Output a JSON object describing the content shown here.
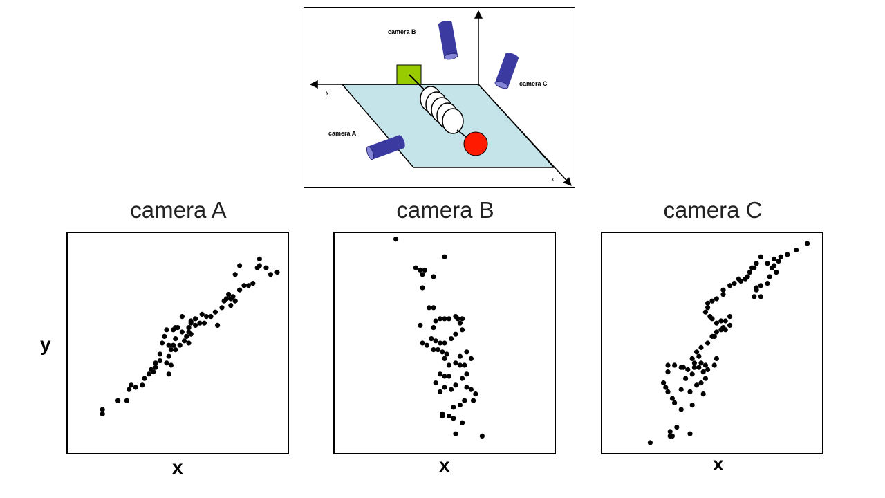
{
  "diagram": {
    "labels": {
      "camera_a": "camera A",
      "camera_b": "camera B",
      "camera_c": "camera C",
      "axis_x": "x",
      "axis_y": "y"
    },
    "colors": {
      "plane": "#c5e4ea",
      "camera": "#3a3aa0",
      "camera_cap": "#8585d8",
      "box": "#99cc00",
      "ball": "#ff1a00"
    }
  },
  "chart_data": [
    {
      "type": "scatter",
      "title": "camera A",
      "xlabel": "x",
      "ylabel": "y",
      "xlim": [
        0,
        100
      ],
      "ylim": [
        0,
        100
      ],
      "grid": false,
      "legend": "none",
      "points": [
        [
          16,
          20
        ],
        [
          16,
          18
        ],
        [
          23,
          24
        ],
        [
          27,
          24
        ],
        [
          28,
          29
        ],
        [
          29,
          31
        ],
        [
          31,
          30
        ],
        [
          34,
          31
        ],
        [
          35,
          34
        ],
        [
          37,
          36
        ],
        [
          39,
          37
        ],
        [
          40,
          39
        ],
        [
          40,
          41
        ],
        [
          38,
          38
        ],
        [
          42,
          42
        ],
        [
          45,
          41
        ],
        [
          46,
          36
        ],
        [
          47,
          40
        ],
        [
          46,
          44
        ],
        [
          42,
          45
        ],
        [
          48,
          49
        ],
        [
          49,
          47
        ],
        [
          51,
          49
        ],
        [
          53,
          51
        ],
        [
          54,
          53
        ],
        [
          55,
          50
        ],
        [
          56,
          54
        ],
        [
          52,
          55
        ],
        [
          50,
          57
        ],
        [
          49,
          57
        ],
        [
          48,
          56
        ],
        [
          44,
          53
        ],
        [
          46,
          49
        ],
        [
          43,
          50
        ],
        [
          45,
          56
        ],
        [
          49,
          52
        ],
        [
          55,
          55
        ],
        [
          58,
          58
        ],
        [
          60,
          59
        ],
        [
          62,
          59
        ],
        [
          63,
          62
        ],
        [
          67,
          64
        ],
        [
          65,
          62
        ],
        [
          68,
          58
        ],
        [
          70,
          66
        ],
        [
          71,
          69
        ],
        [
          72,
          70
        ],
        [
          73,
          72
        ],
        [
          74,
          70
        ],
        [
          74,
          67
        ],
        [
          75,
          71
        ],
        [
          76,
          69
        ],
        [
          78,
          74
        ],
        [
          80,
          76
        ],
        [
          82,
          76
        ],
        [
          84,
          77
        ],
        [
          86,
          84
        ],
        [
          87,
          85
        ],
        [
          90,
          84
        ],
        [
          92,
          81
        ],
        [
          95,
          82
        ],
        [
          87,
          88
        ],
        [
          76,
          81
        ],
        [
          78,
          85
        ],
        [
          61,
          63
        ],
        [
          56,
          60
        ],
        [
          58,
          61
        ],
        [
          52,
          62
        ],
        [
          56,
          59
        ],
        [
          55,
          57
        ],
        [
          47,
          47
        ]
      ]
    },
    {
      "type": "scatter",
      "title": "camera B",
      "xlabel": "x",
      "ylabel": "",
      "xlim": [
        0,
        100
      ],
      "ylim": [
        0,
        100
      ],
      "grid": false,
      "legend": "none",
      "points": [
        [
          28,
          97
        ],
        [
          50,
          89
        ],
        [
          37,
          84
        ],
        [
          39,
          83
        ],
        [
          40,
          81
        ],
        [
          41,
          83
        ],
        [
          45,
          80
        ],
        [
          40,
          75
        ],
        [
          43,
          66
        ],
        [
          45,
          66
        ],
        [
          39,
          58
        ],
        [
          45,
          57
        ],
        [
          46,
          60
        ],
        [
          48,
          61
        ],
        [
          50,
          61
        ],
        [
          52,
          61
        ],
        [
          55,
          62
        ],
        [
          56,
          61
        ],
        [
          58,
          61
        ],
        [
          57,
          59
        ],
        [
          58,
          56
        ],
        [
          55,
          54
        ],
        [
          53,
          52
        ],
        [
          50,
          50
        ],
        [
          48,
          50
        ],
        [
          46,
          51
        ],
        [
          44,
          52
        ],
        [
          42,
          49
        ],
        [
          40,
          50
        ],
        [
          45,
          47
        ],
        [
          47,
          47
        ],
        [
          49,
          46
        ],
        [
          51,
          45
        ],
        [
          50,
          43
        ],
        [
          52,
          40
        ],
        [
          55,
          41
        ],
        [
          57,
          40
        ],
        [
          59,
          40
        ],
        [
          60,
          36
        ],
        [
          58,
          34
        ],
        [
          55,
          31
        ],
        [
          53,
          29
        ],
        [
          50,
          30
        ],
        [
          48,
          28
        ],
        [
          46,
          32
        ],
        [
          48,
          36
        ],
        [
          50,
          35
        ],
        [
          52,
          35
        ],
        [
          60,
          30
        ],
        [
          62,
          29
        ],
        [
          64,
          27
        ],
        [
          63,
          24
        ],
        [
          59,
          24
        ],
        [
          57,
          22
        ],
        [
          54,
          21
        ],
        [
          52,
          17
        ],
        [
          49,
          17
        ],
        [
          49,
          18
        ],
        [
          54,
          16
        ],
        [
          58,
          14
        ],
        [
          55,
          9
        ],
        [
          67,
          8
        ],
        [
          60,
          46
        ],
        [
          62,
          43
        ],
        [
          57,
          44
        ]
      ]
    },
    {
      "type": "scatter",
      "title": "camera C",
      "xlabel": "x",
      "ylabel": "",
      "xlim": [
        0,
        100
      ],
      "ylim": [
        0,
        100
      ],
      "grid": false,
      "legend": "none",
      "points": [
        [
          22,
          5
        ],
        [
          31,
          8
        ],
        [
          32,
          8
        ],
        [
          31,
          10
        ],
        [
          34,
          12
        ],
        [
          40,
          9
        ],
        [
          36,
          20
        ],
        [
          33,
          23
        ],
        [
          32,
          25
        ],
        [
          30,
          28
        ],
        [
          28,
          32
        ],
        [
          29,
          30
        ],
        [
          36,
          29
        ],
        [
          40,
          28
        ],
        [
          43,
          31
        ],
        [
          45,
          32
        ],
        [
          47,
          34
        ],
        [
          46,
          37
        ],
        [
          47,
          40
        ],
        [
          44,
          39
        ],
        [
          42,
          41
        ],
        [
          42,
          39
        ],
        [
          41,
          36
        ],
        [
          39,
          38
        ],
        [
          37,
          39
        ],
        [
          36,
          39
        ],
        [
          33,
          40
        ],
        [
          30,
          40
        ],
        [
          30,
          37
        ],
        [
          41,
          43
        ],
        [
          43,
          46
        ],
        [
          45,
          48
        ],
        [
          48,
          50
        ],
        [
          50,
          53
        ],
        [
          51,
          53
        ],
        [
          52,
          55
        ],
        [
          54,
          56
        ],
        [
          55,
          57
        ],
        [
          56,
          56
        ],
        [
          58,
          58
        ],
        [
          58,
          62
        ],
        [
          56,
          60
        ],
        [
          54,
          60
        ],
        [
          52,
          59
        ],
        [
          50,
          61
        ],
        [
          49,
          62
        ],
        [
          47,
          64
        ],
        [
          48,
          66
        ],
        [
          48,
          68
        ],
        [
          50,
          69
        ],
        [
          52,
          70
        ],
        [
          55,
          72
        ],
        [
          55,
          74
        ],
        [
          58,
          76
        ],
        [
          60,
          77
        ],
        [
          62,
          79
        ],
        [
          63,
          78
        ],
        [
          65,
          79
        ],
        [
          66,
          80
        ],
        [
          67,
          82
        ],
        [
          68,
          84
        ],
        [
          69,
          84
        ],
        [
          70,
          86
        ],
        [
          72,
          89
        ],
        [
          75,
          86
        ],
        [
          77,
          84
        ],
        [
          78,
          85
        ],
        [
          80,
          87
        ],
        [
          78,
          88
        ],
        [
          76,
          80
        ],
        [
          75,
          77
        ],
        [
          72,
          76
        ],
        [
          70,
          75
        ],
        [
          69,
          71
        ],
        [
          70,
          74
        ],
        [
          72,
          71
        ],
        [
          81,
          89
        ],
        [
          84,
          90
        ],
        [
          88,
          92
        ],
        [
          93,
          95
        ],
        [
          79,
          82
        ],
        [
          46,
          27
        ],
        [
          41,
          22
        ],
        [
          51,
          40
        ],
        [
          48,
          38
        ],
        [
          45,
          41
        ],
        [
          44,
          44
        ],
        [
          52,
          43
        ],
        [
          38,
          34
        ]
      ]
    }
  ]
}
